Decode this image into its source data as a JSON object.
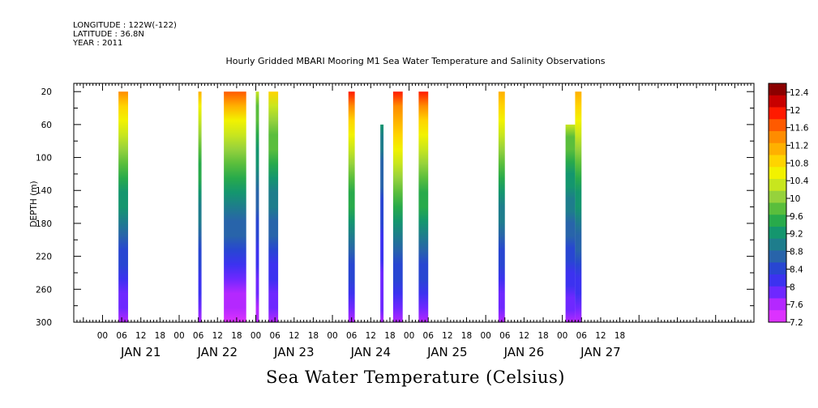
{
  "header": {
    "longitude": "LONGITUDE : 122W(-122)",
    "latitude": "LATITUDE : 36.8N",
    "year": "YEAR : 2011"
  },
  "title": "Hourly Gridded MBARI Mooring M1 Sea Water Temperature and Salinity Observations",
  "caption": "Sea Water Temperature (Celsius)",
  "chart_data": {
    "type": "heatmap",
    "ylabel": "DEPTH (m)",
    "y_ticks": [
      20,
      60,
      100,
      140,
      180,
      220,
      260,
      300
    ],
    "ylim": [
      10,
      300
    ],
    "y_inverted": true,
    "xlim_hours": [
      -9,
      204
    ],
    "x_hour_ticks": [
      "00",
      "06",
      "12",
      "18",
      "00",
      "06",
      "12",
      "18",
      "00",
      "06",
      "12",
      "18",
      "00",
      "06",
      "12",
      "18",
      "00",
      "06",
      "12",
      "18",
      "00",
      "06",
      "12",
      "18",
      "00",
      "06",
      "12",
      "18"
    ],
    "x_day_labels": [
      "JAN 21",
      "JAN 22",
      "JAN 23",
      "JAN 24",
      "JAN 25",
      "JAN 26",
      "JAN 27"
    ],
    "colorbar": {
      "ticks": [
        12.4,
        12,
        11.6,
        11.2,
        10.8,
        10.4,
        10,
        9.6,
        9.2,
        8.8,
        8.4,
        8,
        7.6,
        7.2
      ],
      "colors": [
        "#8b0000",
        "#c80000",
        "#ff1a00",
        "#ff5a00",
        "#ff8c00",
        "#ffb000",
        "#ffd400",
        "#f2f200",
        "#c8e61e",
        "#96d23c",
        "#5abe3c",
        "#28aa4b",
        "#14966e",
        "#1e7d8c",
        "#2864aa",
        "#2846d2",
        "#3c32f0",
        "#6e28ff",
        "#b428ff",
        "#dc32ff"
      ]
    },
    "series": [
      {
        "hours_start": 5,
        "hours_end": 8,
        "depth_top": 20,
        "depth_bottom": 300,
        "temp_top": 11.4,
        "temp_bottom": 7.6
      },
      {
        "hours_start": 30,
        "hours_end": 31,
        "depth_top": 20,
        "depth_bottom": 300,
        "temp_top": 11.0,
        "temp_bottom": 7.7
      },
      {
        "hours_start": 38,
        "hours_end": 45,
        "depth_top": 20,
        "depth_bottom": 300,
        "temp_top": 11.6,
        "temp_bottom": 7.3
      },
      {
        "hours_start": 48,
        "hours_end": 49,
        "depth_top": 20,
        "depth_bottom": 300,
        "temp_top": 10.2,
        "temp_bottom": 7.6
      },
      {
        "hours_start": 52,
        "hours_end": 55,
        "depth_top": 20,
        "depth_bottom": 300,
        "temp_top": 10.8,
        "temp_bottom": 7.6
      },
      {
        "hours_start": 77,
        "hours_end": 79,
        "depth_top": 20,
        "depth_bottom": 300,
        "temp_top": 11.8,
        "temp_bottom": 7.7
      },
      {
        "hours_start": 87,
        "hours_end": 88,
        "depth_top": 60,
        "depth_bottom": 300,
        "temp_top": 9.2,
        "temp_bottom": 7.7
      },
      {
        "hours_start": 91,
        "hours_end": 94,
        "depth_top": 20,
        "depth_bottom": 300,
        "temp_top": 12.0,
        "temp_bottom": 7.7
      },
      {
        "hours_start": 99,
        "hours_end": 102,
        "depth_top": 20,
        "depth_bottom": 300,
        "temp_top": 11.8,
        "temp_bottom": 7.7
      },
      {
        "hours_start": 124,
        "hours_end": 126,
        "depth_top": 20,
        "depth_bottom": 300,
        "temp_top": 11.2,
        "temp_bottom": 7.6
      },
      {
        "hours_start": 145,
        "hours_end": 148,
        "depth_top": 60,
        "depth_bottom": 300,
        "temp_top": 10.2,
        "temp_bottom": 7.7
      },
      {
        "hours_start": 148,
        "hours_end": 150,
        "depth_top": 20,
        "depth_bottom": 300,
        "temp_top": 11.2,
        "temp_bottom": 7.7
      }
    ]
  }
}
